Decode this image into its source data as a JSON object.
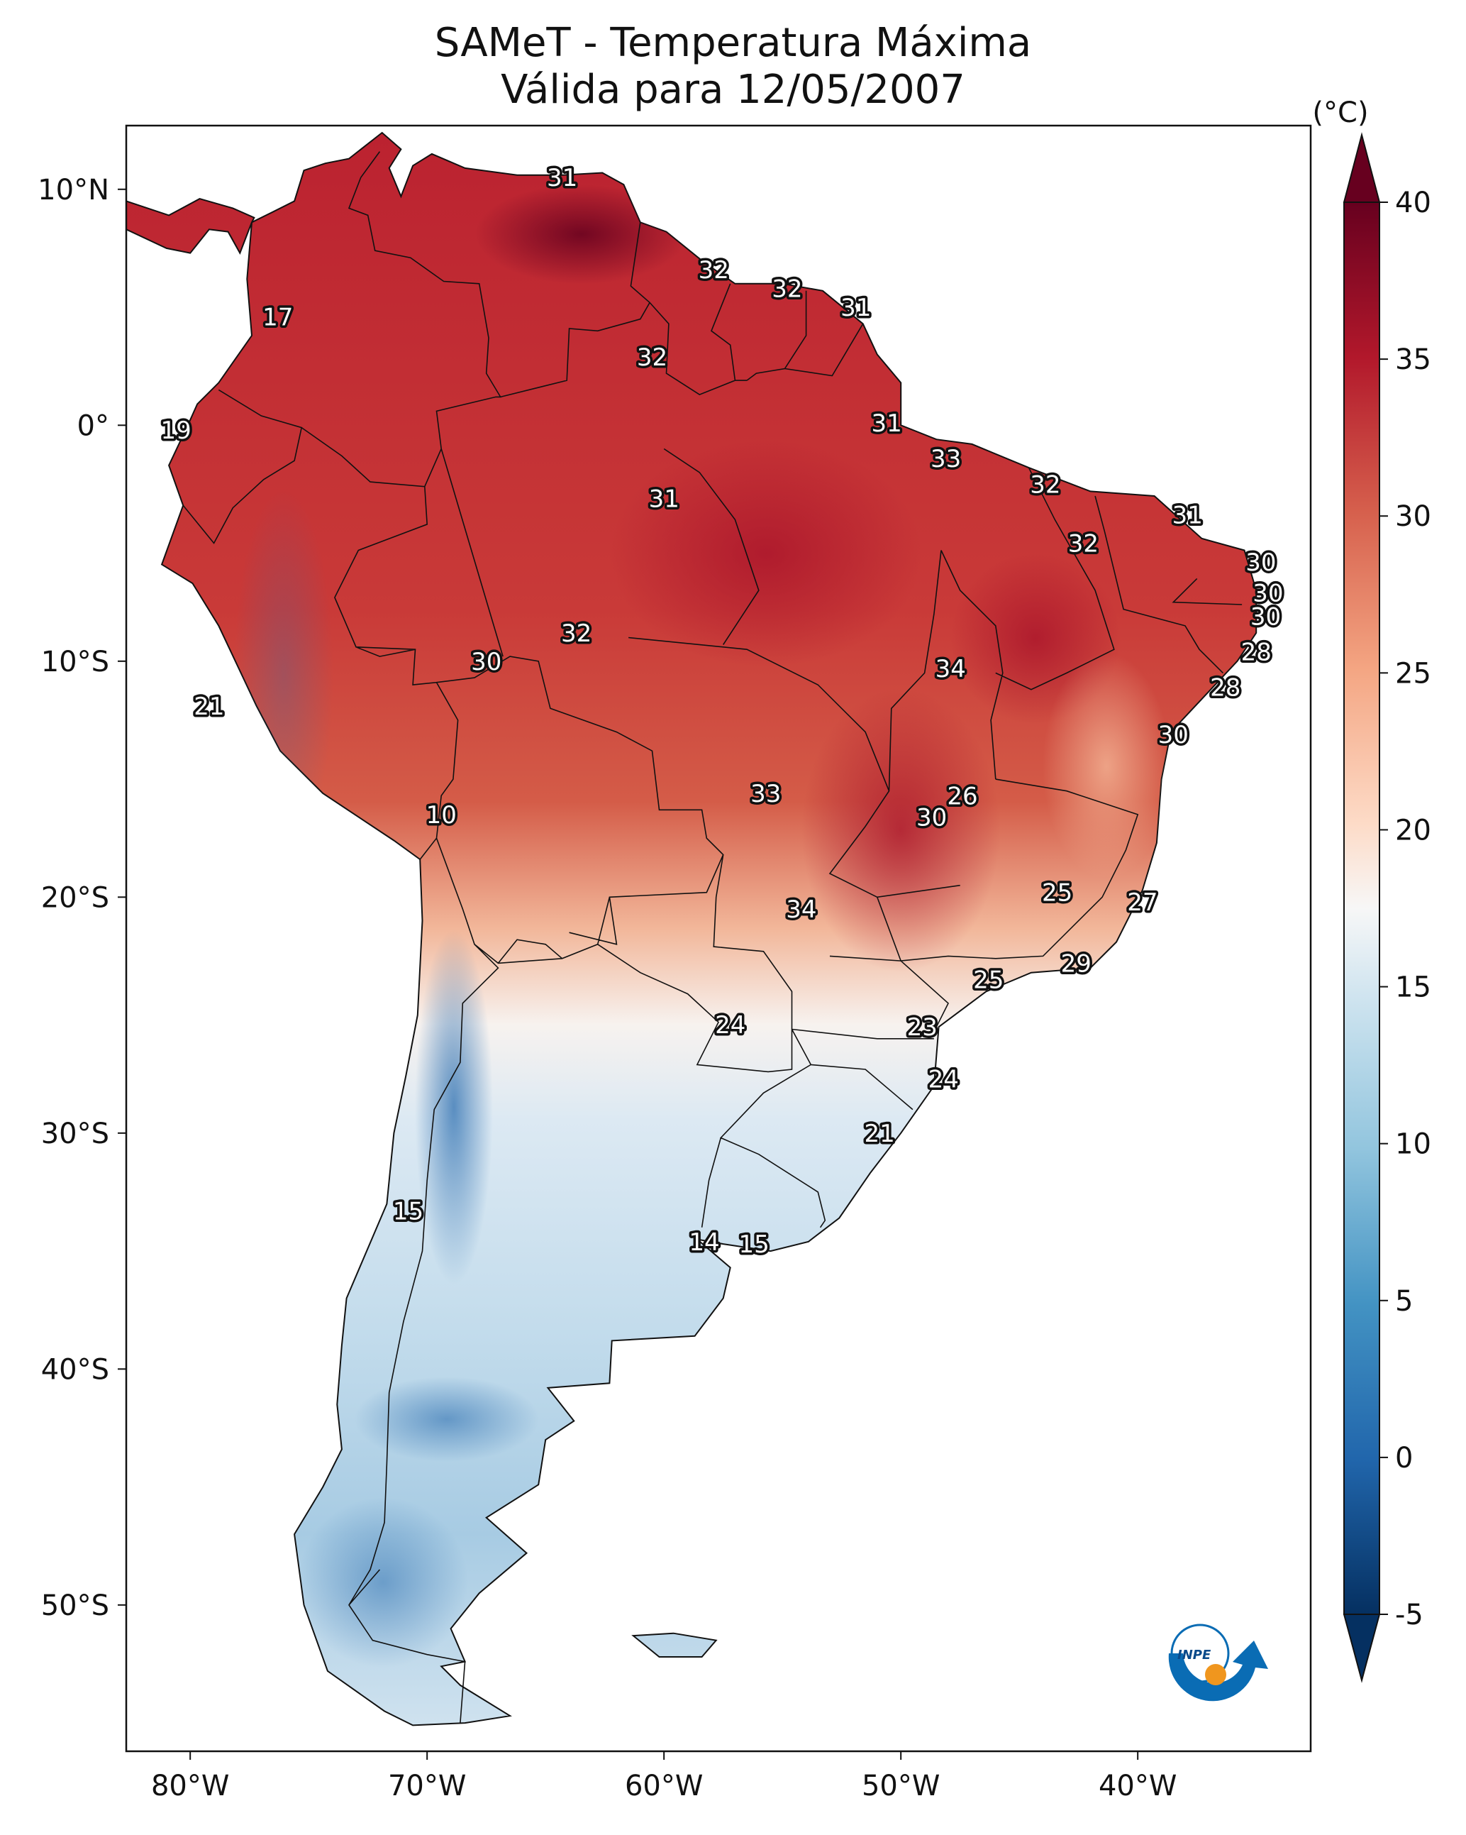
{
  "title": {
    "line1": "SAMeT - Temperatura Máxima",
    "line2": "Válida para 12/05/2007"
  },
  "map": {
    "lon_range": [
      -82.7,
      -32.7
    ],
    "lat_range": [
      -56.2,
      12.7
    ],
    "lon_ticks": [
      {
        "value": -80,
        "label": "80°W"
      },
      {
        "value": -70,
        "label": "70°W"
      },
      {
        "value": -60,
        "label": "60°W"
      },
      {
        "value": -50,
        "label": "50°W"
      },
      {
        "value": -40,
        "label": "40°W"
      }
    ],
    "lat_ticks": [
      {
        "value": 10,
        "label": "10°N"
      },
      {
        "value": 0,
        "label": "0°"
      },
      {
        "value": -10,
        "label": "10°S"
      },
      {
        "value": -20,
        "label": "20°S"
      },
      {
        "value": -30,
        "label": "30°S"
      },
      {
        "value": -40,
        "label": "40°S"
      },
      {
        "value": -50,
        "label": "50°S"
      }
    ],
    "labels": [
      {
        "text": "31",
        "lon": -64.3,
        "lat": 10.5
      },
      {
        "text": "32",
        "lon": -57.9,
        "lat": 6.6
      },
      {
        "text": "32",
        "lon": -54.8,
        "lat": 5.8
      },
      {
        "text": "31",
        "lon": -51.9,
        "lat": 5.0
      },
      {
        "text": "17",
        "lon": -76.3,
        "lat": 4.6
      },
      {
        "text": "32",
        "lon": -60.5,
        "lat": 2.9
      },
      {
        "text": "31",
        "lon": -50.6,
        "lat": 0.1
      },
      {
        "text": "19",
        "lon": -80.6,
        "lat": -0.2
      },
      {
        "text": "33",
        "lon": -48.1,
        "lat": -1.4
      },
      {
        "text": "31",
        "lon": -60.0,
        "lat": -3.1
      },
      {
        "text": "32",
        "lon": -43.9,
        "lat": -2.5
      },
      {
        "text": "31",
        "lon": -37.9,
        "lat": -3.8
      },
      {
        "text": "32",
        "lon": -42.3,
        "lat": -5.0
      },
      {
        "text": "30",
        "lon": -34.8,
        "lat": -5.8
      },
      {
        "text": "30",
        "lon": -34.5,
        "lat": -7.1
      },
      {
        "text": "30",
        "lon": -34.6,
        "lat": -8.1
      },
      {
        "text": "32",
        "lon": -63.7,
        "lat": -8.8
      },
      {
        "text": "30",
        "lon": -67.5,
        "lat": -10.0
      },
      {
        "text": "28",
        "lon": -35.0,
        "lat": -9.6
      },
      {
        "text": "34",
        "lon": -47.9,
        "lat": -10.3
      },
      {
        "text": "28",
        "lon": -36.3,
        "lat": -11.1
      },
      {
        "text": "21",
        "lon": -79.2,
        "lat": -11.9
      },
      {
        "text": "30",
        "lon": -38.5,
        "lat": -13.1
      },
      {
        "text": "33",
        "lon": -55.7,
        "lat": -15.6
      },
      {
        "text": "26",
        "lon": -47.4,
        "lat": -15.7
      },
      {
        "text": "10",
        "lon": -69.4,
        "lat": -16.5
      },
      {
        "text": "30",
        "lon": -48.7,
        "lat": -16.6
      },
      {
        "text": "25",
        "lon": -43.4,
        "lat": -19.8
      },
      {
        "text": "27",
        "lon": -39.8,
        "lat": -20.2
      },
      {
        "text": "34",
        "lon": -54.2,
        "lat": -20.5
      },
      {
        "text": "29",
        "lon": -42.6,
        "lat": -22.8
      },
      {
        "text": "25",
        "lon": -46.3,
        "lat": -23.5
      },
      {
        "text": "24",
        "lon": -57.2,
        "lat": -25.4
      },
      {
        "text": "23",
        "lon": -49.1,
        "lat": -25.5
      },
      {
        "text": "24",
        "lon": -48.2,
        "lat": -27.7
      },
      {
        "text": "21",
        "lon": -50.9,
        "lat": -30.0
      },
      {
        "text": "15",
        "lon": -70.8,
        "lat": -33.3
      },
      {
        "text": "14",
        "lon": -58.3,
        "lat": -34.6
      },
      {
        "text": "15",
        "lon": -56.2,
        "lat": -34.7
      }
    ]
  },
  "colorbar": {
    "unit": "(°C)",
    "min": -5,
    "max": 40,
    "ticks": [
      -5,
      0,
      5,
      10,
      15,
      20,
      25,
      30,
      35,
      40
    ],
    "tick_labels": [
      "-5",
      "0",
      "5",
      "10",
      "15",
      "20",
      "25",
      "30",
      "35",
      "40"
    ]
  },
  "logo": {
    "text": "INPE"
  },
  "colors": {
    "cold": "#053061",
    "cool": "#2166ac",
    "neutral": "#f7f7f7",
    "warm": "#d6604d",
    "hot": "#67001f",
    "logo_blue": "#0a6cb4",
    "logo_orange": "#f0961e"
  }
}
